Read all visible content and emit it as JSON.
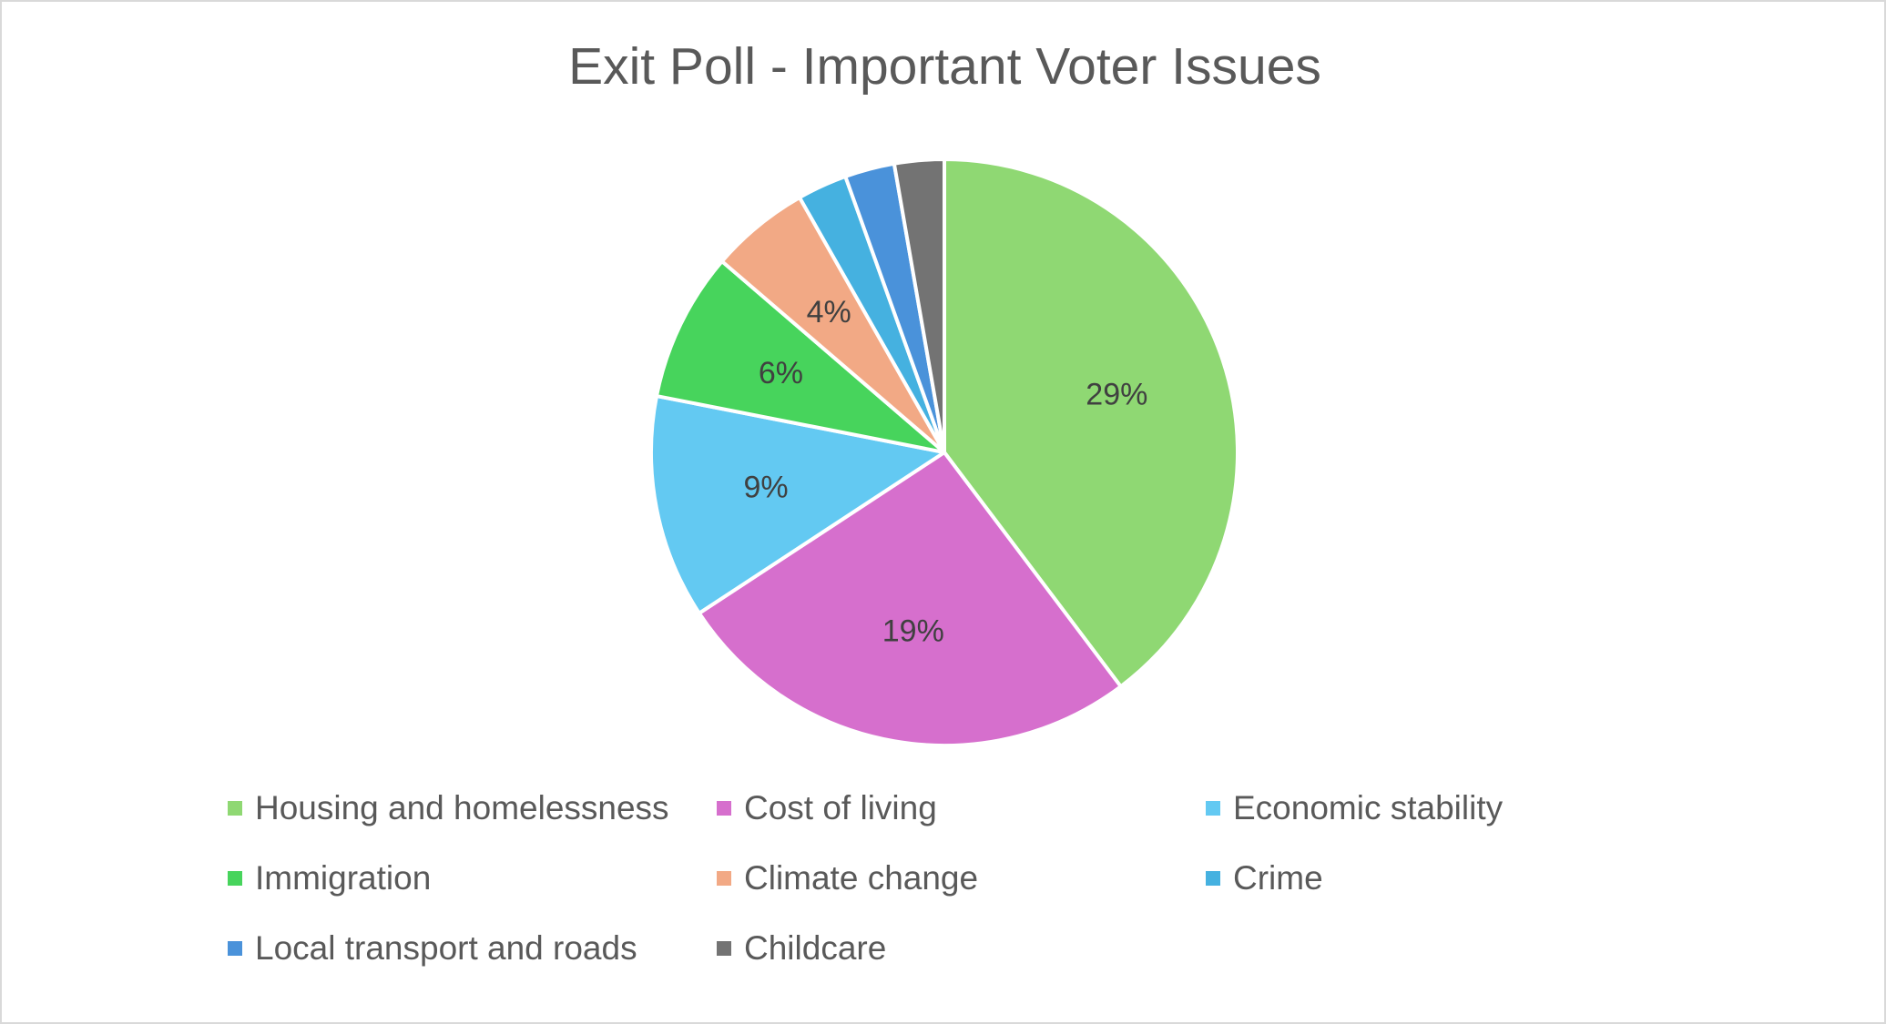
{
  "chart_data": {
    "type": "pie",
    "title": "Exit Poll - Important Voter Issues",
    "legend_position": "bottom",
    "slices": [
      {
        "label": "Housing and homelessness",
        "value": 29,
        "data_label": "29%",
        "color": "#8fd873"
      },
      {
        "label": "Cost of living",
        "value": 19,
        "data_label": "19%",
        "color": "#d66fcd"
      },
      {
        "label": "Economic stability",
        "value": 9,
        "data_label": "9%",
        "color": "#63c9f2"
      },
      {
        "label": "Immigration",
        "value": 6,
        "data_label": "6%",
        "color": "#47d45c"
      },
      {
        "label": "Climate change",
        "value": 4,
        "data_label": "4%",
        "color": "#f2a985"
      },
      {
        "label": "Crime",
        "value": 2,
        "data_label": "",
        "color": "#45b1e0"
      },
      {
        "label": "Local transport and roads",
        "value": 2,
        "data_label": "",
        "color": "#4a92da"
      },
      {
        "label": "Childcare",
        "value": 2,
        "data_label": "",
        "color": "#737373"
      }
    ]
  }
}
